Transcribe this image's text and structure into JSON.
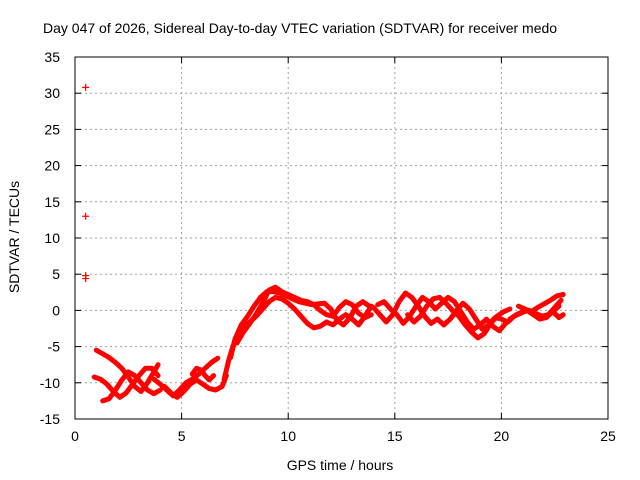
{
  "chart_data": {
    "type": "scatter",
    "title": "Day 047 of 2026, Sidereal Day-to-day VTEC variation (SDTVAR) for receiver medo",
    "xlabel": "GPS time / hours",
    "ylabel": "SDTVAR / TECUs",
    "xlim": [
      0,
      25
    ],
    "ylim": [
      -15,
      35
    ],
    "xticks": [
      0,
      5,
      10,
      15,
      20,
      25
    ],
    "yticks": [
      -15,
      -10,
      -5,
      0,
      5,
      10,
      15,
      20,
      25,
      30,
      35
    ],
    "grid": true,
    "marker": "+",
    "series": [
      {
        "name": "SDTVAR",
        "color": "#ff0000",
        "isolated_points": [
          {
            "x": 0.5,
            "y": 30.8
          },
          {
            "x": 0.5,
            "y": 13.0
          },
          {
            "x": 0.5,
            "y": 4.8
          },
          {
            "x": 0.5,
            "y": 4.4
          }
        ],
        "tracks": [
          [
            [
              1.0,
              -5.5
            ],
            [
              1.3,
              -6.0
            ],
            [
              1.6,
              -6.5
            ],
            [
              1.9,
              -7.2
            ],
            [
              2.2,
              -8.0
            ],
            [
              2.5,
              -9.2
            ],
            [
              2.8,
              -10.5
            ],
            [
              3.1,
              -11.2
            ],
            [
              3.4,
              -10.0
            ],
            [
              3.7,
              -8.5
            ],
            [
              3.9,
              -7.5
            ]
          ],
          [
            [
              0.9,
              -9.2
            ],
            [
              1.2,
              -9.5
            ],
            [
              1.5,
              -10.2
            ],
            [
              1.8,
              -11.2
            ],
            [
              2.1,
              -12.0
            ],
            [
              2.4,
              -11.4
            ],
            [
              2.7,
              -10.2
            ],
            [
              3.0,
              -9.0
            ],
            [
              3.3,
              -8.0
            ],
            [
              3.6,
              -8.0
            ],
            [
              3.9,
              -9.0
            ]
          ],
          [
            [
              1.3,
              -12.5
            ],
            [
              1.6,
              -12.2
            ],
            [
              1.9,
              -11.0
            ],
            [
              2.2,
              -9.6
            ],
            [
              2.5,
              -8.5
            ],
            [
              2.8,
              -9.0
            ],
            [
              3.1,
              -10.0
            ],
            [
              3.4,
              -11.0
            ],
            [
              3.7,
              -11.5
            ],
            [
              4.0,
              -11.0
            ]
          ],
          [
            [
              3.7,
              -9.5
            ],
            [
              4.0,
              -10.2
            ],
            [
              4.3,
              -11.0
            ],
            [
              4.6,
              -11.8
            ],
            [
              4.9,
              -11.0
            ],
            [
              5.2,
              -10.0
            ],
            [
              5.5,
              -9.5
            ],
            [
              5.8,
              -8.8
            ],
            [
              6.1,
              -8.0
            ],
            [
              6.4,
              -7.2
            ],
            [
              6.7,
              -6.6
            ]
          ],
          [
            [
              4.2,
              -10.5
            ],
            [
              4.5,
              -11.4
            ],
            [
              4.8,
              -12.0
            ],
            [
              5.1,
              -11.2
            ],
            [
              5.4,
              -10.2
            ],
            [
              5.7,
              -9.6
            ],
            [
              6.0,
              -10.2
            ],
            [
              6.3,
              -10.8
            ],
            [
              6.6,
              -11.0
            ],
            [
              6.9,
              -10.5
            ],
            [
              7.1,
              -9.0
            ]
          ],
          [
            [
              5.5,
              -8.8
            ],
            [
              5.7,
              -8.0
            ],
            [
              5.9,
              -8.2
            ],
            [
              6.1,
              -9.0
            ],
            [
              6.3,
              -9.6
            ],
            [
              6.5,
              -9.0
            ]
          ],
          [
            [
              7.0,
              -9.5
            ],
            [
              7.2,
              -7.0
            ],
            [
              7.4,
              -5.0
            ],
            [
              7.6,
              -3.6
            ],
            [
              7.9,
              -2.4
            ],
            [
              8.2,
              -1.6
            ],
            [
              8.5,
              -0.8
            ],
            [
              8.8,
              0.2
            ],
            [
              9.1,
              1.2
            ],
            [
              9.4,
              1.8
            ],
            [
              9.7,
              1.6
            ],
            [
              10.0,
              1.0
            ],
            [
              10.3,
              0.2
            ],
            [
              10.6,
              -0.8
            ],
            [
              10.9,
              -1.8
            ],
            [
              11.2,
              -2.4
            ],
            [
              11.5,
              -2.2
            ],
            [
              11.8,
              -1.6
            ]
          ],
          [
            [
              7.3,
              -6.5
            ],
            [
              7.5,
              -4.0
            ],
            [
              7.8,
              -2.0
            ],
            [
              8.1,
              -0.8
            ],
            [
              8.4,
              0.6
            ],
            [
              8.7,
              1.8
            ],
            [
              9.0,
              2.6
            ],
            [
              9.3,
              2.6
            ],
            [
              9.6,
              2.4
            ],
            [
              9.9,
              2.0
            ],
            [
              10.2,
              1.6
            ],
            [
              10.5,
              1.2
            ],
            [
              10.8,
              1.0
            ],
            [
              11.1,
              0.8
            ],
            [
              11.4,
              0.9
            ],
            [
              11.7,
              1.0
            ]
          ],
          [
            [
              7.6,
              -4.5
            ],
            [
              7.9,
              -3.0
            ],
            [
              8.2,
              -1.8
            ],
            [
              8.5,
              -0.5
            ],
            [
              8.8,
              1.0
            ],
            [
              9.1,
              2.8
            ],
            [
              9.4,
              3.2
            ],
            [
              9.7,
              2.6
            ],
            [
              10.0,
              2.2
            ],
            [
              10.3,
              1.8
            ],
            [
              10.6,
              1.4
            ],
            [
              10.9,
              1.2
            ],
            [
              11.2,
              0.8
            ],
            [
              11.5,
              0.0
            ],
            [
              11.8,
              -0.6
            ],
            [
              12.1,
              -0.8
            ]
          ],
          [
            [
              11.8,
              -1.6
            ],
            [
              12.1,
              -2.0
            ],
            [
              12.4,
              -1.2
            ],
            [
              12.7,
              -0.6
            ],
            [
              13.0,
              -1.2
            ],
            [
              13.3,
              -2.0
            ],
            [
              13.6,
              -0.8
            ],
            [
              13.9,
              0.6
            ]
          ],
          [
            [
              11.7,
              1.0
            ],
            [
              12.0,
              0.2
            ],
            [
              12.3,
              -1.4
            ],
            [
              12.6,
              -2.0
            ],
            [
              12.9,
              -1.0
            ],
            [
              13.2,
              0.6
            ],
            [
              13.5,
              1.2
            ],
            [
              13.8,
              0.6
            ]
          ],
          [
            [
              12.1,
              -0.8
            ],
            [
              12.4,
              0.4
            ],
            [
              12.7,
              1.2
            ],
            [
              13.0,
              0.8
            ],
            [
              13.3,
              -0.4
            ],
            [
              13.6,
              -1.0
            ],
            [
              13.9,
              -0.6
            ]
          ],
          [
            [
              14.0,
              0.4
            ],
            [
              14.3,
              -0.6
            ],
            [
              14.6,
              -1.6
            ],
            [
              14.9,
              -0.6
            ],
            [
              15.2,
              1.2
            ],
            [
              15.5,
              2.4
            ],
            [
              15.8,
              1.8
            ],
            [
              16.1,
              0.6
            ],
            [
              16.4,
              -0.8
            ],
            [
              16.7,
              -1.8
            ],
            [
              17.0,
              -1.2
            ]
          ],
          [
            [
              14.2,
              0.8
            ],
            [
              14.5,
              1.2
            ],
            [
              14.8,
              0.2
            ],
            [
              15.1,
              -0.6
            ],
            [
              15.4,
              -1.8
            ],
            [
              15.7,
              -0.8
            ],
            [
              16.0,
              0.6
            ],
            [
              16.3,
              1.8
            ],
            [
              16.6,
              1.2
            ],
            [
              16.9,
              0.2
            ]
          ],
          [
            [
              15.6,
              -0.6
            ],
            [
              15.9,
              -1.6
            ],
            [
              16.2,
              -0.8
            ],
            [
              16.5,
              0.6
            ],
            [
              16.8,
              1.6
            ],
            [
              17.1,
              1.8
            ],
            [
              17.4,
              1.0
            ],
            [
              17.7,
              0.0
            ]
          ],
          [
            [
              17.0,
              -1.2
            ],
            [
              17.3,
              -2.0
            ],
            [
              17.6,
              -1.2
            ],
            [
              17.9,
              0.0
            ],
            [
              18.2,
              1.0
            ],
            [
              18.5,
              0.2
            ],
            [
              18.8,
              -1.2
            ],
            [
              19.1,
              -2.6
            ],
            [
              19.4,
              -2.0
            ],
            [
              19.7,
              -1.0
            ],
            [
              20.0,
              -1.2
            ],
            [
              20.3,
              -1.6
            ],
            [
              20.6,
              -0.8
            ]
          ],
          [
            [
              16.9,
              0.2
            ],
            [
              17.2,
              1.0
            ],
            [
              17.5,
              1.8
            ],
            [
              17.8,
              1.2
            ],
            [
              18.1,
              -0.2
            ],
            [
              18.4,
              -1.6
            ],
            [
              18.7,
              -2.6
            ],
            [
              19.0,
              -2.0
            ],
            [
              19.3,
              -1.2
            ],
            [
              19.6,
              -2.2
            ],
            [
              19.9,
              -2.8
            ],
            [
              20.2,
              -1.8
            ]
          ],
          [
            [
              17.7,
              0.0
            ],
            [
              18.0,
              -0.8
            ],
            [
              18.3,
              -2.0
            ],
            [
              18.6,
              -3.0
            ],
            [
              18.9,
              -3.8
            ],
            [
              19.2,
              -3.2
            ],
            [
              19.5,
              -1.8
            ],
            [
              19.8,
              -0.8
            ],
            [
              20.1,
              -0.2
            ],
            [
              20.4,
              0.2
            ]
          ],
          [
            [
              20.4,
              -1.2
            ],
            [
              20.7,
              -0.6
            ],
            [
              21.0,
              -0.2
            ],
            [
              21.3,
              0.0
            ],
            [
              21.6,
              -0.4
            ],
            [
              21.9,
              -0.8
            ],
            [
              22.2,
              -0.6
            ],
            [
              22.5,
              0.4
            ],
            [
              22.8,
              1.4
            ]
          ],
          [
            [
              20.6,
              -0.8
            ],
            [
              20.9,
              -0.4
            ],
            [
              21.2,
              0.0
            ],
            [
              21.5,
              -0.6
            ],
            [
              21.8,
              -1.2
            ],
            [
              22.1,
              -1.0
            ],
            [
              22.4,
              -0.2
            ],
            [
              22.7,
              0.6
            ]
          ],
          [
            [
              20.8,
              0.6
            ],
            [
              21.1,
              0.2
            ],
            [
              21.4,
              -0.2
            ],
            [
              21.7,
              0.4
            ],
            [
              22.0,
              0.9
            ],
            [
              22.3,
              1.4
            ],
            [
              22.6,
              2.0
            ],
            [
              22.9,
              2.2
            ]
          ],
          [
            [
              22.5,
              -0.4
            ],
            [
              22.7,
              -1.0
            ],
            [
              22.9,
              -0.6
            ]
          ]
        ]
      }
    ]
  }
}
